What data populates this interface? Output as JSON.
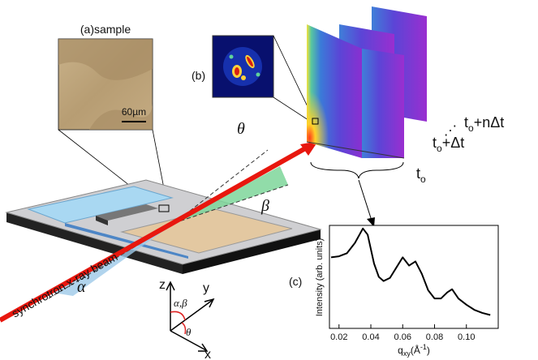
{
  "labels": {
    "sample": "(a)sample",
    "scale_bar": "60µm",
    "panel_b": "(b)",
    "theta": "θ",
    "beta": "β",
    "alpha": "α",
    "beam": "synchrotron x-ray beam",
    "axis_z": "z",
    "axis_y": "y",
    "axis_x": "x",
    "axis_alpha_beta": "α,β",
    "axis_theta": "θ",
    "dots": "⋰"
  },
  "frames": [
    {
      "t": "t",
      "sub": "o"
    },
    {
      "t": "t",
      "sub": "o",
      "rest": "+Δt"
    },
    {
      "t": "t",
      "sub": "o",
      "rest": "+nΔt"
    }
  ],
  "chart_data": {
    "type": "line",
    "panel_label": "(c)",
    "y_label": "Intensity (arb. units)",
    "x_label": {
      "symbol": "q",
      "sub": "xy",
      "unit": "(Å",
      "sup": "-1",
      "close": ")"
    },
    "x": [
      0.015,
      0.02,
      0.025,
      0.03,
      0.035,
      0.038,
      0.042,
      0.045,
      0.048,
      0.052,
      0.056,
      0.06,
      0.064,
      0.068,
      0.072,
      0.076,
      0.08,
      0.084,
      0.088,
      0.091,
      0.095,
      0.1,
      0.105,
      0.11,
      0.115
    ],
    "series": [
      {
        "color": "#000000",
        "values": [
          0.69,
          0.7,
          0.73,
          0.83,
          0.97,
          0.91,
          0.63,
          0.5,
          0.46,
          0.49,
          0.59,
          0.69,
          0.61,
          0.65,
          0.53,
          0.37,
          0.29,
          0.29,
          0.35,
          0.38,
          0.29,
          0.23,
          0.18,
          0.15,
          0.13
        ]
      }
    ],
    "xlim": [
      0.014,
      0.12
    ],
    "ylim": [
      0,
      1
    ],
    "xticks": [
      0.02,
      0.04,
      0.06,
      0.08,
      {
        "value": 0.1,
        "label": "0.10"
      }
    ]
  }
}
